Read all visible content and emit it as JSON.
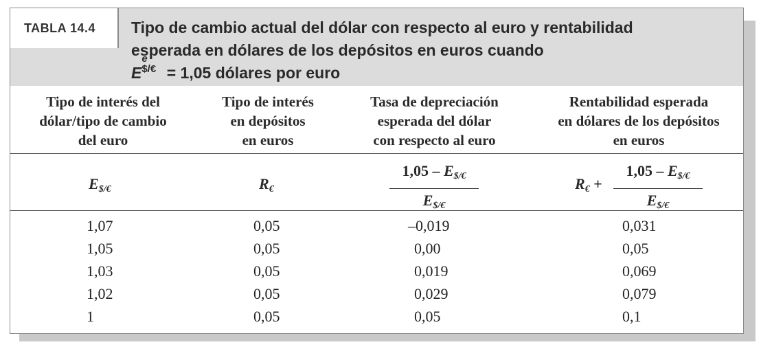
{
  "table": {
    "tag": "TABLA 14.4",
    "title_line1": "Tipo de cambio actual del dólar con respecto al euro y rentabilidad",
    "title_line2": "esperada en dólares de los depósitos en euros cuando",
    "title_line3_symbol": "E",
    "title_line3_sup": "e",
    "title_line3_sub": "$/€",
    "title_line3_rest": " = 1,05 dólares por euro",
    "columns": [
      {
        "header": [
          "Tipo de interés del",
          "dólar/tipo de cambio",
          "del euro"
        ]
      },
      {
        "header": [
          "Tipo de interés",
          "en depósitos",
          "en euros"
        ]
      },
      {
        "header": [
          "Tasa de depreciación",
          "esperada del dólar",
          "con respecto al euro"
        ]
      },
      {
        "header": [
          "Rentabilidad esperada",
          "en dólares de los depósitos",
          "en euros"
        ]
      }
    ],
    "formulas": {
      "col1_symbol": "E",
      "col1_sub": "$/€",
      "col2_symbol": "R",
      "col2_sub": "€",
      "col3_num_text": "1,05 – ",
      "col3_num_symbol": "E",
      "col3_num_sub": "$/€",
      "col3_den_symbol": "E",
      "col3_den_sub": "$/€",
      "col4_prefix_symbol": "R",
      "col4_prefix_sub": "€",
      "col4_plus": "+",
      "col4_num_text": "1,05 – ",
      "col4_num_symbol": "E",
      "col4_num_sub": "$/€",
      "col4_den_symbol": "E",
      "col4_den_sub": "$/€"
    },
    "rows": [
      [
        "1,07",
        "0,05",
        "–0,019",
        "0,031"
      ],
      [
        "1,05",
        "0,05",
        "0,00",
        "0,05"
      ],
      [
        "1,03",
        "0,05",
        "0,019",
        "0,069"
      ],
      [
        "1,02",
        "0,05",
        "0,029",
        "0,079"
      ],
      [
        "1",
        "0,05",
        "0,05",
        "0,1"
      ]
    ]
  }
}
